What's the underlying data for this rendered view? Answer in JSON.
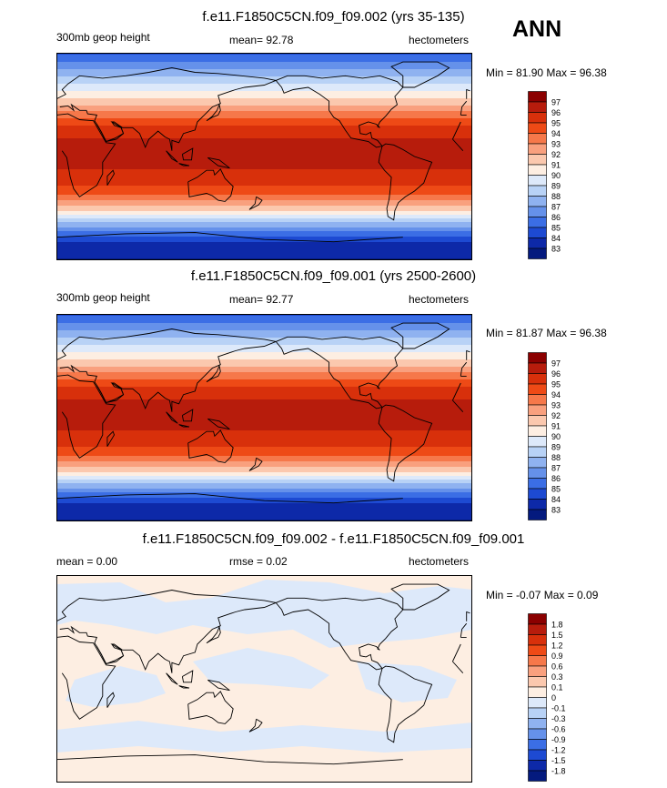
{
  "season": "ANN",
  "panels": [
    {
      "title": "f.e11.F1850C5CN.f09_f09.002 (yrs 35-135)",
      "left_label": "300mb geop height",
      "mid_label": "mean=  92.78",
      "units": "hectometers",
      "minmax": "Min =  81.90 Max =  96.38",
      "type": "absolute"
    },
    {
      "title": "f.e11.F1850C5CN.f09_f09.001 (yrs 2500-2600)",
      "left_label": "300mb geop height",
      "mid_label": "mean=  92.77",
      "units": "hectometers",
      "minmax": "Min =  81.87 Max =  96.38",
      "type": "absolute"
    },
    {
      "title": "f.e11.F1850C5CN.f09_f09.002 - f.e11.F1850C5CN.f09_f09.001",
      "left_label": "mean =   0.00",
      "mid_label": "rmse =   0.02",
      "units": "hectometers",
      "minmax": "Min =  -0.07 Max =   0.09",
      "type": "difference"
    }
  ],
  "colorbars": {
    "absolute": {
      "labels": [
        "97",
        "96",
        "95",
        "94",
        "93",
        "92",
        "91",
        "90",
        "89",
        "88",
        "87",
        "86",
        "85",
        "84",
        "83"
      ],
      "colors": [
        "#8b0000",
        "#b71c0c",
        "#d8300b",
        "#ee4a16",
        "#f6784a",
        "#f9a07e",
        "#fbc8ae",
        "#fdeee2",
        "#dde9fa",
        "#b8d2f6",
        "#8fb2f0",
        "#6591ea",
        "#3b6ee5",
        "#1d4ad2",
        "#0d29a8",
        "#041a7e"
      ]
    },
    "difference": {
      "labels": [
        "1.8",
        "1.5",
        "1.2",
        "0.9",
        "0.6",
        "0.3",
        "0.1",
        "0",
        "-0.1",
        "-0.3",
        "-0.6",
        "-0.9",
        "-1.2",
        "-1.5",
        "-1.8"
      ],
      "colors": [
        "#8b0000",
        "#b71c0c",
        "#d8300b",
        "#ee4a16",
        "#f6784a",
        "#f9a07e",
        "#fbc8ae",
        "#fdeee2",
        "#dde9fa",
        "#b8d2f6",
        "#8fb2f0",
        "#6591ea",
        "#3b6ee5",
        "#1d4ad2",
        "#0d29a8",
        "#041a7e"
      ]
    }
  },
  "chart_data": [
    {
      "type": "heatmap",
      "title": "f.e11.F1850C5CN.f09_f09.002 (yrs 35-135)",
      "variable": "300mb geop height",
      "units": "hectometers",
      "mean": 92.78,
      "min": 81.9,
      "max": 96.38,
      "levels": [
        83,
        84,
        85,
        86,
        87,
        88,
        89,
        90,
        91,
        92,
        93,
        94,
        95,
        96,
        97
      ],
      "zonal_profile": {
        "lat": [
          90,
          75,
          60,
          45,
          30,
          15,
          0,
          -15,
          -30,
          -45,
          -60,
          -75,
          -90
        ],
        "value": [
          84.6,
          87.2,
          89.5,
          91.8,
          94.7,
          96.0,
          96.3,
          95.9,
          94.5,
          91.5,
          87.2,
          83.9,
          82.9
        ]
      }
    },
    {
      "type": "heatmap",
      "title": "f.e11.F1850C5CN.f09_f09.001 (yrs 2500-2600)",
      "variable": "300mb geop height",
      "units": "hectometers",
      "mean": 92.77,
      "min": 81.87,
      "max": 96.38,
      "levels": [
        83,
        84,
        85,
        86,
        87,
        88,
        89,
        90,
        91,
        92,
        93,
        94,
        95,
        96,
        97
      ],
      "zonal_profile": {
        "lat": [
          90,
          75,
          60,
          45,
          30,
          15,
          0,
          -15,
          -30,
          -45,
          -60,
          -75,
          -90
        ],
        "value": [
          84.6,
          87.2,
          89.5,
          91.8,
          94.7,
          96.0,
          96.3,
          95.9,
          94.5,
          91.5,
          87.2,
          83.9,
          82.9
        ]
      }
    },
    {
      "type": "heatmap",
      "title": "f.e11.F1850C5CN.f09_f09.002 - f.e11.F1850C5CN.f09_f09.001",
      "units": "hectometers",
      "mean": 0.0,
      "rmse": 0.02,
      "min": -0.07,
      "max": 0.09,
      "levels": [
        -1.8,
        -1.5,
        -1.2,
        -0.9,
        -0.6,
        -0.3,
        -0.1,
        0,
        0.1,
        0.3,
        0.6,
        0.9,
        1.2,
        1.5,
        1.8
      ]
    }
  ]
}
